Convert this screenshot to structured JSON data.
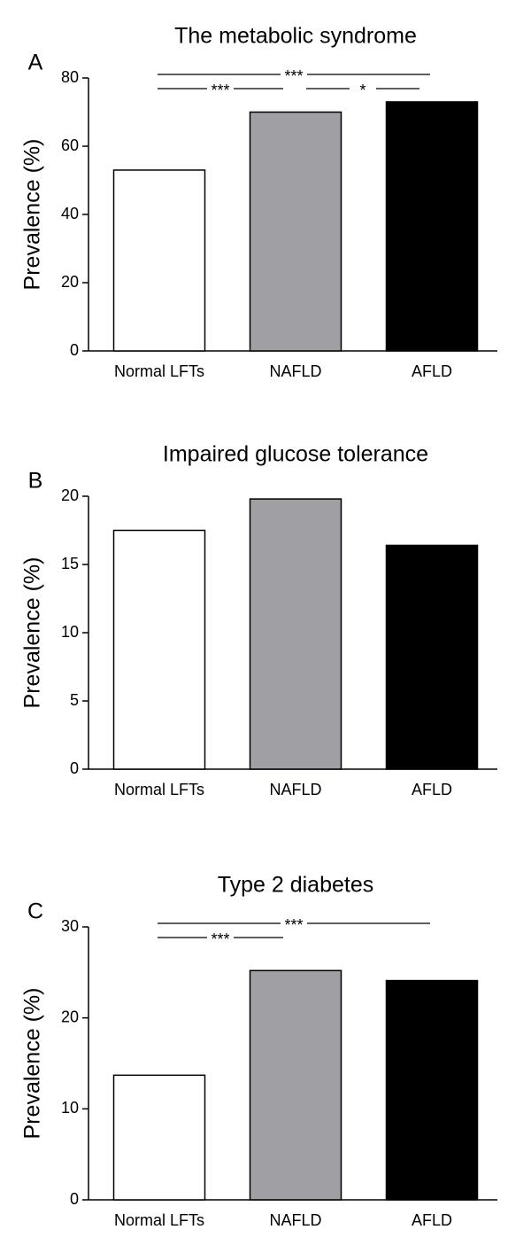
{
  "chart_data": [
    {
      "type": "bar",
      "panel": "A",
      "title": "The metabolic syndrome",
      "y_label": "Prevalence (%)",
      "categories": [
        "Normal LFTs",
        "NAFLD",
        "AFLD"
      ],
      "values": [
        53,
        70,
        73
      ],
      "colors": [
        "#ffffff",
        "#a0a0a4",
        "#000000"
      ],
      "ylim": [
        0,
        80
      ],
      "yticks": [
        0,
        20,
        40,
        60,
        80
      ],
      "annotations": [
        {
          "text": "***",
          "from": 0,
          "to": 2
        },
        {
          "text": "***",
          "from": 0,
          "to": 1
        },
        {
          "text": "*",
          "from": 1,
          "to": 2
        }
      ]
    },
    {
      "type": "bar",
      "panel": "B",
      "title": "Impaired glucose tolerance",
      "y_label": "Prevalence (%)",
      "categories": [
        "Normal LFTs",
        "NAFLD",
        "AFLD"
      ],
      "values": [
        17.5,
        19.8,
        16.4
      ],
      "colors": [
        "#ffffff",
        "#a0a0a4",
        "#000000"
      ],
      "ylim": [
        0,
        20
      ],
      "yticks": [
        0,
        5,
        10,
        15,
        20
      ]
    },
    {
      "type": "bar",
      "panel": "C",
      "title": "Type 2 diabetes",
      "y_label": "Prevalence (%)",
      "categories": [
        "Normal LFTs",
        "NAFLD",
        "AFLD"
      ],
      "values": [
        13.7,
        25.2,
        24.1
      ],
      "colors": [
        "#ffffff",
        "#a0a0a4",
        "#000000"
      ],
      "ylim": [
        0,
        30
      ],
      "yticks": [
        0,
        10,
        20,
        30
      ],
      "annotations": [
        {
          "text": "***",
          "from": 0,
          "to": 2
        },
        {
          "text": "***",
          "from": 0,
          "to": 1
        }
      ]
    }
  ]
}
